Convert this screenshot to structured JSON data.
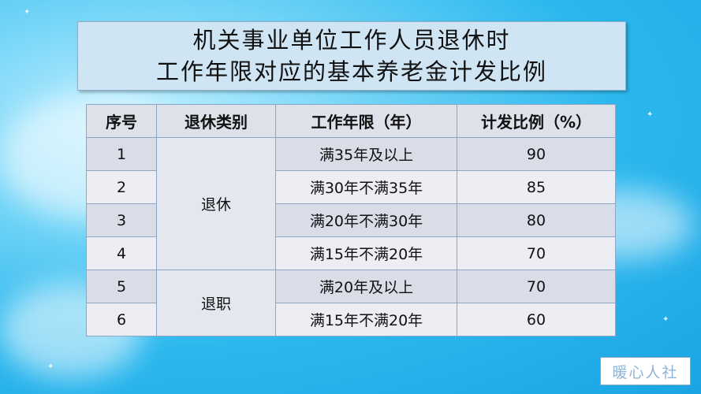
{
  "title": {
    "line1": "机关事业单位工作人员退休时",
    "line2": "工作年限对应的基本养老金计发比例"
  },
  "table": {
    "headers": [
      "序号",
      "退休类别",
      "工作年限（年）",
      "计发比例（%）"
    ],
    "groups": [
      {
        "category": "退休",
        "rows": [
          0,
          1,
          2,
          3
        ]
      },
      {
        "category": "退职",
        "rows": [
          4,
          5
        ]
      }
    ],
    "rows": [
      {
        "no": "1",
        "years": "满35年及以上",
        "ratio": "90"
      },
      {
        "no": "2",
        "years": "满30年不满35年",
        "ratio": "85"
      },
      {
        "no": "3",
        "years": "满20年不满30年",
        "ratio": "80"
      },
      {
        "no": "4",
        "years": "满15年不满20年",
        "ratio": "70"
      },
      {
        "no": "5",
        "years": "满20年及以上",
        "ratio": "70"
      },
      {
        "no": "6",
        "years": "满15年不满20年",
        "ratio": "60"
      }
    ]
  },
  "watermark": "暖心人社"
}
